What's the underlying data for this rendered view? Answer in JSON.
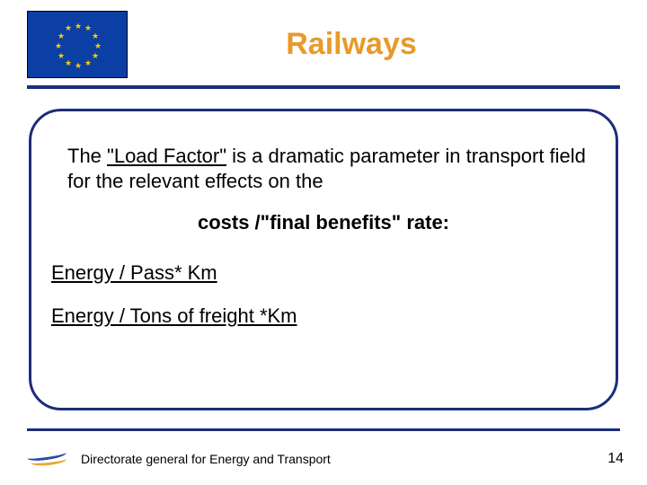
{
  "colors": {
    "title": "#e89a2a",
    "hr": "#1b2e7a",
    "box_border": "#1b2e7a",
    "flag_bg": "#0b3fa3",
    "star": "#ffcc00"
  },
  "title": "Railways",
  "paragraph": {
    "pre": "The ",
    "underlined": "\"Load Factor\"",
    "post": "  is a dramatic parameter in transport field  for the relevant effects on the"
  },
  "bold_line": "costs /\"final benefits\" rate:",
  "links": [
    "Energy / Pass* Km",
    "Energy  / Tons of freight *Km"
  ],
  "footer_text": "Directorate general for Energy and Transport",
  "page_number": "14"
}
